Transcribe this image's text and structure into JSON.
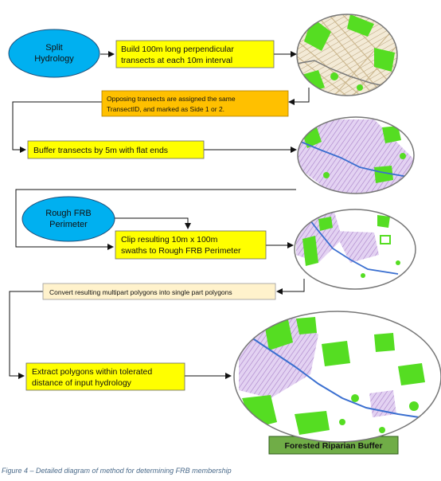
{
  "nodes": {
    "split_hydrology": [
      "Split",
      "Hydrology"
    ],
    "build_transects": [
      "Build 100m long perpendicular",
      "transects at each 10m interval"
    ],
    "opposing_transects": [
      "Opposing transects are assigned the same",
      "TransectID, and marked as Side 1 or 2."
    ],
    "buffer_transects": "Buffer transects by 5m with flat ends",
    "rough_frb_perimeter": [
      "Rough FRB",
      "Perimeter"
    ],
    "clip_swaths": [
      "Clip resulting 10m x 100m",
      "swaths to Rough FRB Perimeter"
    ],
    "convert_polygons": "Convert resulting multipart polygons into single part polygons",
    "extract_polygons": [
      "Extract polygons within tolerated",
      "distance of input hydrology"
    ],
    "result": "Forested Riparian Buffer"
  },
  "caption": "Figure 4 – Detailed diagram of method for determining FRB membership",
  "colors": {
    "ellipse_fill": "#00b0f0",
    "box_yellow": "#ffff00",
    "box_orange": "#ffc000",
    "box_cream": "#fff2cc",
    "box_green": "#70ad47",
    "map_green": "#55dd22",
    "map_purple": "#cfb3e6",
    "map_blue": "#3a6fd0",
    "map_tan": "#d9c9a8"
  }
}
